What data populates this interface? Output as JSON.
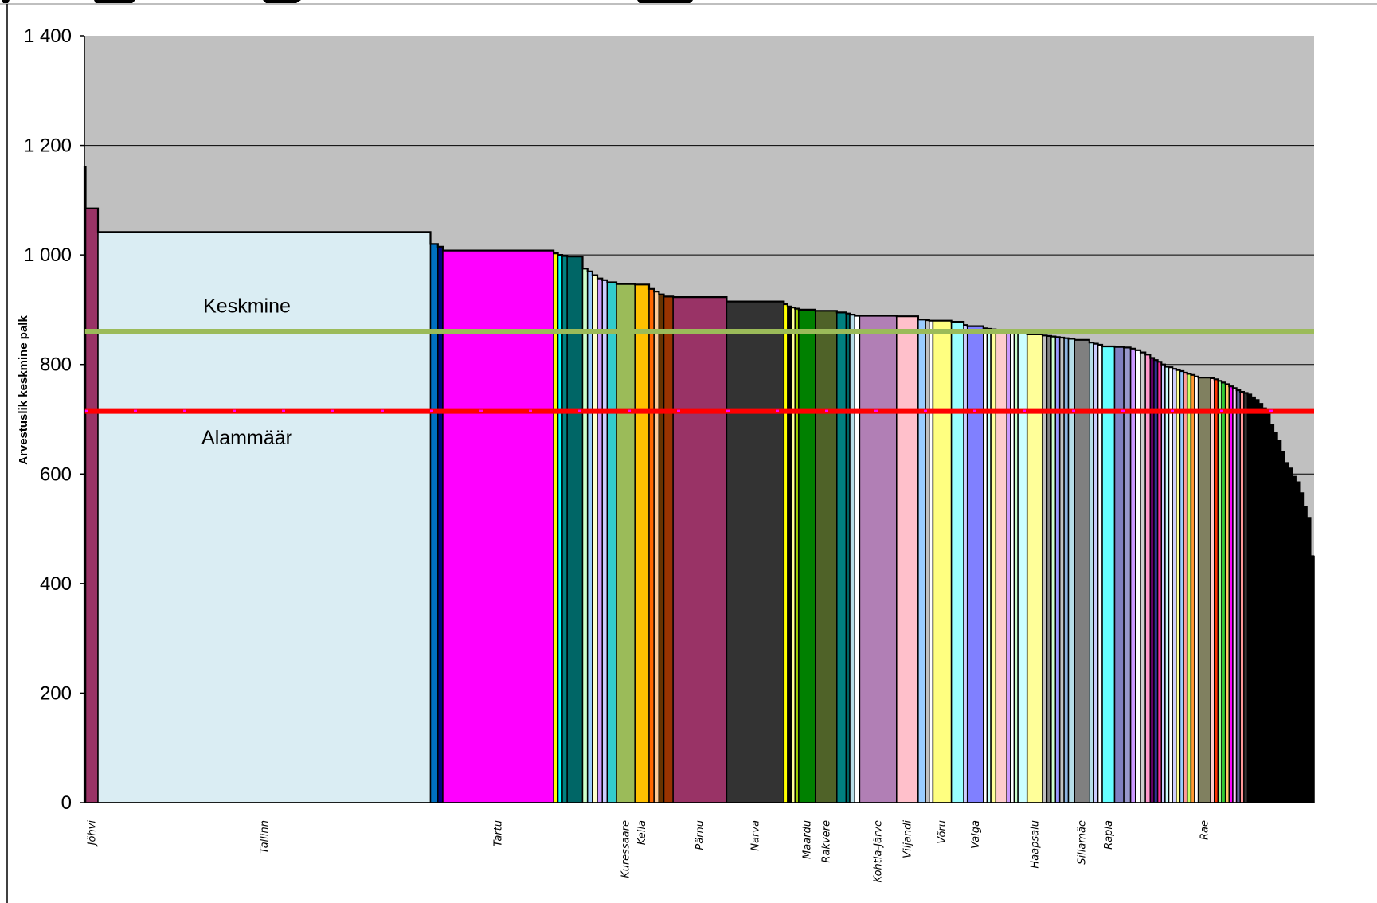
{
  "chart_data": {
    "type": "bar",
    "ylabel": "Arvestuslik keskmine palk",
    "ylim": [
      0,
      1400
    ],
    "yticks": [
      0,
      200,
      400,
      600,
      800,
      1000,
      1200,
      1400
    ],
    "ytick_labels": [
      "0",
      "200",
      "400",
      "600",
      "800",
      "1 000",
      "1 200",
      "1 400"
    ],
    "grid": true,
    "reference_lines": [
      {
        "label": "Keskmine",
        "value": 860,
        "color": "#9bbb59"
      },
      {
        "label": "Alammäär",
        "value": 715,
        "color": "#ff0000",
        "dash_color": "#ff00ff"
      }
    ],
    "bars": [
      {
        "category": "",
        "value": 1160,
        "weight": 0.2,
        "color": "#993366"
      },
      {
        "category": "Jõhvi",
        "value": 1085,
        "weight": 2,
        "color": "#993366"
      },
      {
        "category": "Tallinn",
        "value": 1042,
        "weight": 54,
        "color": "#daedf3"
      },
      {
        "category": "",
        "value": 1020,
        "weight": 1.2,
        "color": "#0070c0"
      },
      {
        "category": "",
        "value": 1015,
        "weight": 0.8,
        "color": "#000080"
      },
      {
        "category": "Tartu",
        "value": 1008,
        "weight": 18,
        "color": "#ff00ff"
      },
      {
        "category": "",
        "value": 1003,
        "weight": 0.7,
        "color": "#ffff00"
      },
      {
        "category": "",
        "value": 1000,
        "weight": 0.7,
        "color": "#00ffff"
      },
      {
        "category": "",
        "value": 998,
        "weight": 0.8,
        "color": "#008080"
      },
      {
        "category": "",
        "value": 997,
        "weight": 2.5,
        "color": "#006666"
      },
      {
        "category": "",
        "value": 975,
        "weight": 0.8,
        "color": "#ccffcc"
      },
      {
        "category": "",
        "value": 970,
        "weight": 0.8,
        "color": "#99ccff"
      },
      {
        "category": "",
        "value": 963,
        "weight": 0.8,
        "color": "#ffffcc"
      },
      {
        "category": "",
        "value": 957,
        "weight": 0.8,
        "color": "#cc99ff"
      },
      {
        "category": "",
        "value": 954,
        "weight": 0.8,
        "color": "#ccccff"
      },
      {
        "category": "",
        "value": 950,
        "weight": 1.5,
        "color": "#33cccc"
      },
      {
        "category": "Kuressaare",
        "value": 947,
        "weight": 3,
        "color": "#9bbb59"
      },
      {
        "category": "Keila",
        "value": 946,
        "weight": 2.3,
        "color": "#ffc000"
      },
      {
        "category": "",
        "value": 938,
        "weight": 0.8,
        "color": "#ff6600"
      },
      {
        "category": "",
        "value": 933,
        "weight": 0.8,
        "color": "#ffcc99"
      },
      {
        "category": "",
        "value": 928,
        "weight": 0.8,
        "color": "#663300"
      },
      {
        "category": "",
        "value": 924,
        "weight": 1.5,
        "color": "#993300"
      },
      {
        "category": "Pärnu",
        "value": 923,
        "weight": 8.7,
        "color": "#993366"
      },
      {
        "category": "Narva",
        "value": 915,
        "weight": 9.3,
        "color": "#333333"
      },
      {
        "category": "",
        "value": 910,
        "weight": 0.6,
        "color": "#ffff00"
      },
      {
        "category": "",
        "value": 906,
        "weight": 0.6,
        "color": "#000000"
      },
      {
        "category": "",
        "value": 904,
        "weight": 0.6,
        "color": "#ffff99"
      },
      {
        "category": "",
        "value": 902,
        "weight": 0.6,
        "color": "#99cc00"
      },
      {
        "category": "Maardu",
        "value": 900,
        "weight": 2.7,
        "color": "#008000"
      },
      {
        "category": "Rakvere",
        "value": 898,
        "weight": 3.5,
        "color": "#4f6228"
      },
      {
        "category": "",
        "value": 895,
        "weight": 1.5,
        "color": "#008080"
      },
      {
        "category": "",
        "value": 893,
        "weight": 0.6,
        "color": "#006666"
      },
      {
        "category": "",
        "value": 891,
        "weight": 0.8,
        "color": "#b7dee8"
      },
      {
        "category": "",
        "value": 889,
        "weight": 0.8,
        "color": "#ffffff"
      },
      {
        "category": "Kohtla-Järve",
        "value": 889,
        "weight": 6,
        "color": "#b17fb5"
      },
      {
        "category": "Viljandi",
        "value": 888,
        "weight": 3.5,
        "color": "#ffc0cb"
      },
      {
        "category": "",
        "value": 882,
        "weight": 1.2,
        "color": "#99ccff"
      },
      {
        "category": "",
        "value": 881,
        "weight": 0.6,
        "color": "#c0c0c0"
      },
      {
        "category": "",
        "value": 880,
        "weight": 0.6,
        "color": "#ffffff"
      },
      {
        "category": "Võru",
        "value": 880,
        "weight": 3,
        "color": "#ffff80"
      },
      {
        "category": "",
        "value": 878,
        "weight": 2,
        "color": "#99ffff"
      },
      {
        "category": "",
        "value": 872,
        "weight": 0.6,
        "color": "#ccccff"
      },
      {
        "category": "Valga",
        "value": 870,
        "weight": 2.6,
        "color": "#8080ff"
      },
      {
        "category": "",
        "value": 866,
        "weight": 0.6,
        "color": "#ffffff"
      },
      {
        "category": "",
        "value": 865,
        "weight": 0.6,
        "color": "#ccffff"
      },
      {
        "category": "",
        "value": 864,
        "weight": 0.8,
        "color": "#ffff99"
      },
      {
        "category": "",
        "value": 863,
        "weight": 1.8,
        "color": "#ffcccc"
      },
      {
        "category": "",
        "value": 862,
        "weight": 0.6,
        "color": "#cc99ff"
      },
      {
        "category": "",
        "value": 861,
        "weight": 0.6,
        "color": "#ffffff"
      },
      {
        "category": "",
        "value": 860,
        "weight": 0.6,
        "color": "#ccffcc"
      },
      {
        "category": "",
        "value": 858,
        "weight": 1.5,
        "color": "#ccffff"
      },
      {
        "category": "Haapsalu",
        "value": 855,
        "weight": 2.5,
        "color": "#ffff99"
      },
      {
        "category": "",
        "value": 853,
        "weight": 0.7,
        "color": "#c0c0c0"
      },
      {
        "category": "",
        "value": 852,
        "weight": 0.7,
        "color": "#808080"
      },
      {
        "category": "",
        "value": 851,
        "weight": 0.7,
        "color": "#ccffcc"
      },
      {
        "category": "",
        "value": 850,
        "weight": 0.7,
        "color": "#9999ff"
      },
      {
        "category": "",
        "value": 849,
        "weight": 0.7,
        "color": "#c0c0c0"
      },
      {
        "category": "",
        "value": 848,
        "weight": 0.7,
        "color": "#8db4e2"
      },
      {
        "category": "",
        "value": 847,
        "weight": 1,
        "color": "#b7dee8"
      },
      {
        "category": "Sillamäe",
        "value": 845,
        "weight": 2.4,
        "color": "#808080"
      },
      {
        "category": "",
        "value": 840,
        "weight": 0.7,
        "color": "#b7dee8"
      },
      {
        "category": "",
        "value": 838,
        "weight": 0.7,
        "color": "#ccccff"
      },
      {
        "category": "",
        "value": 836,
        "weight": 0.7,
        "color": "#ffffff"
      },
      {
        "category": "Rapla",
        "value": 833,
        "weight": 2,
        "color": "#66ffff"
      },
      {
        "category": "",
        "value": 832,
        "weight": 1.5,
        "color": "#8080c0"
      },
      {
        "category": "",
        "value": 831,
        "weight": 1.1,
        "color": "#9999cc"
      },
      {
        "category": "",
        "value": 829,
        "weight": 0.8,
        "color": "#cc99ff"
      },
      {
        "category": "",
        "value": 826,
        "weight": 0.8,
        "color": "#ffffff"
      },
      {
        "category": "",
        "value": 822,
        "weight": 0.8,
        "color": "#cccccc"
      },
      {
        "category": "",
        "value": 818,
        "weight": 0.8,
        "color": "#ff99cc"
      },
      {
        "category": "",
        "value": 812,
        "weight": 0.6,
        "color": "#660066"
      },
      {
        "category": "",
        "value": 808,
        "weight": 0.6,
        "color": "#333399"
      },
      {
        "category": "",
        "value": 805,
        "weight": 0.6,
        "color": "#ff3399"
      },
      {
        "category": "",
        "value": 800,
        "weight": 0.6,
        "color": "#ccccff"
      },
      {
        "category": "",
        "value": 796,
        "weight": 0.6,
        "color": "#ccffff"
      },
      {
        "category": "",
        "value": 795,
        "weight": 0.6,
        "color": "#ffffff"
      },
      {
        "category": "",
        "value": 792,
        "weight": 0.6,
        "color": "#ccccff"
      },
      {
        "category": "",
        "value": 790,
        "weight": 0.6,
        "color": "#ffff99"
      },
      {
        "category": "",
        "value": 788,
        "weight": 0.6,
        "color": "#99ccff"
      },
      {
        "category": "",
        "value": 785,
        "weight": 0.6,
        "color": "#ff9999"
      },
      {
        "category": "",
        "value": 783,
        "weight": 0.6,
        "color": "#ccff66"
      },
      {
        "category": "",
        "value": 781,
        "weight": 0.6,
        "color": "#ff9933"
      },
      {
        "category": "",
        "value": 778,
        "weight": 0.6,
        "color": "#ffffff"
      },
      {
        "category": "Rae",
        "value": 776,
        "weight": 2,
        "color": "#808060"
      },
      {
        "category": "",
        "value": 775,
        "weight": 0.6,
        "color": "#ffcccc"
      },
      {
        "category": "",
        "value": 773,
        "weight": 0.6,
        "color": "#ff3300"
      },
      {
        "category": "",
        "value": 770,
        "weight": 0.6,
        "color": "#99ff99"
      },
      {
        "category": "",
        "value": 767,
        "weight": 0.6,
        "color": "#33cc33"
      },
      {
        "category": "",
        "value": 764,
        "weight": 0.6,
        "color": "#ffcc66"
      },
      {
        "category": "",
        "value": 760,
        "weight": 0.6,
        "color": "#ff00ff"
      },
      {
        "category": "",
        "value": 757,
        "weight": 0.6,
        "color": "#ffccff"
      },
      {
        "category": "",
        "value": 753,
        "weight": 0.6,
        "color": "#666699"
      },
      {
        "category": "",
        "value": 750,
        "weight": 0.6,
        "color": "#ff9999"
      },
      {
        "category": "",
        "value": 748,
        "weight": 0.6,
        "color": "#333333"
      },
      {
        "category": "",
        "value": 745,
        "weight": 0.6,
        "color": "#000000"
      },
      {
        "category": "",
        "value": 740,
        "weight": 0.6,
        "color": "#000000"
      },
      {
        "category": "",
        "value": 735,
        "weight": 0.6,
        "color": "#000000"
      },
      {
        "category": "",
        "value": 728,
        "weight": 0.6,
        "color": "#000000"
      },
      {
        "category": "",
        "value": 720,
        "weight": 0.6,
        "color": "#000000"
      },
      {
        "category": "",
        "value": 710,
        "weight": 0.6,
        "color": "#000000"
      },
      {
        "category": "",
        "value": 690,
        "weight": 0.6,
        "color": "#000000"
      },
      {
        "category": "",
        "value": 675,
        "weight": 0.6,
        "color": "#000000"
      },
      {
        "category": "",
        "value": 660,
        "weight": 0.6,
        "color": "#000000"
      },
      {
        "category": "",
        "value": 640,
        "weight": 0.6,
        "color": "#000000"
      },
      {
        "category": "",
        "value": 620,
        "weight": 0.6,
        "color": "#000000"
      },
      {
        "category": "",
        "value": 610,
        "weight": 0.6,
        "color": "#000000"
      },
      {
        "category": "",
        "value": 595,
        "weight": 0.6,
        "color": "#000000"
      },
      {
        "category": "",
        "value": 585,
        "weight": 0.6,
        "color": "#000000"
      },
      {
        "category": "",
        "value": 565,
        "weight": 0.6,
        "color": "#000000"
      },
      {
        "category": "",
        "value": 540,
        "weight": 0.6,
        "color": "#000000"
      },
      {
        "category": "",
        "value": 520,
        "weight": 0.6,
        "color": "#000000"
      },
      {
        "category": "",
        "value": 450,
        "weight": 0.6,
        "color": "#000000"
      }
    ]
  },
  "colors": {
    "plot_background": "#c0c0c0",
    "gridline": "#000000",
    "bar_outline": "#000000"
  }
}
